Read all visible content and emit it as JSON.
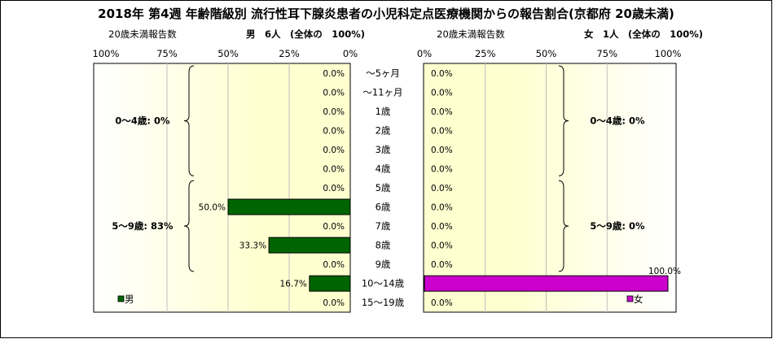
{
  "title": "2018年 第4週 年齢階級別 流行性耳下腺炎患者の小児科定点医療機関からの報告割合(京都府 20歳未満)",
  "colors": {
    "male": "#006400",
    "female": "#cc00cc",
    "plot_bg": "#ffffd0",
    "plot_bg_edge": "#ffffff",
    "grid": "#bfbfbf",
    "border": "#000000"
  },
  "chart_data": [
    {
      "type": "bar",
      "orientation": "horizontal",
      "direction": "right-to-left",
      "header": "20歳未満報告数",
      "summary": "男　6人　(全体の　100%)",
      "legend": "男",
      "legend_position": "bottom-left",
      "xlim": [
        0,
        100
      ],
      "tick_labels": [
        "100%",
        "75%",
        "50%",
        "25%",
        "0%"
      ],
      "grid": true,
      "categories": [
        "～5ヶ月",
        "～11ヶ月",
        "1歳",
        "2歳",
        "3歳",
        "4歳",
        "5歳",
        "6歳",
        "7歳",
        "8歳",
        "9歳",
        "10～14歳",
        "15～19歳"
      ],
      "values": [
        0,
        0,
        0,
        0,
        0,
        0,
        0,
        50,
        0,
        33.3,
        0,
        16.7,
        0
      ],
      "data_labels": [
        "0.0%",
        "0.0%",
        "0.0%",
        "0.0%",
        "0.0%",
        "0.0%",
        "0.0%",
        "50.0%",
        "0.0%",
        "33.3%",
        "0.0%",
        "16.7%",
        "0.0%"
      ],
      "groups": [
        {
          "label": "0～4歳: 0%",
          "from": 0,
          "to": 5
        },
        {
          "label": "5～9歳: 83%",
          "from": 6,
          "to": 10
        }
      ]
    },
    {
      "type": "bar",
      "orientation": "horizontal",
      "direction": "left-to-right",
      "header": "20歳未満報告数",
      "summary": "女　1人　(全体の　100%)",
      "legend": "女",
      "legend_position": "bottom-right",
      "xlim": [
        0,
        100
      ],
      "tick_labels": [
        "0%",
        "25%",
        "50%",
        "75%",
        "100%"
      ],
      "grid": true,
      "categories": [
        "～5ヶ月",
        "～11ヶ月",
        "1歳",
        "2歳",
        "3歳",
        "4歳",
        "5歳",
        "6歳",
        "7歳",
        "8歳",
        "9歳",
        "10～14歳",
        "15～19歳"
      ],
      "values": [
        0,
        0,
        0,
        0,
        0,
        0,
        0,
        0,
        0,
        0,
        0,
        100,
        0
      ],
      "data_labels": [
        "0.0%",
        "0.0%",
        "0.0%",
        "0.0%",
        "0.0%",
        "0.0%",
        "0.0%",
        "0.0%",
        "0.0%",
        "0.0%",
        "0.0%",
        "100.0%",
        "0.0%"
      ],
      "groups": [
        {
          "label": "0～4歳: 0%",
          "from": 0,
          "to": 5
        },
        {
          "label": "5～9歳: 0%",
          "from": 6,
          "to": 10
        }
      ]
    }
  ]
}
